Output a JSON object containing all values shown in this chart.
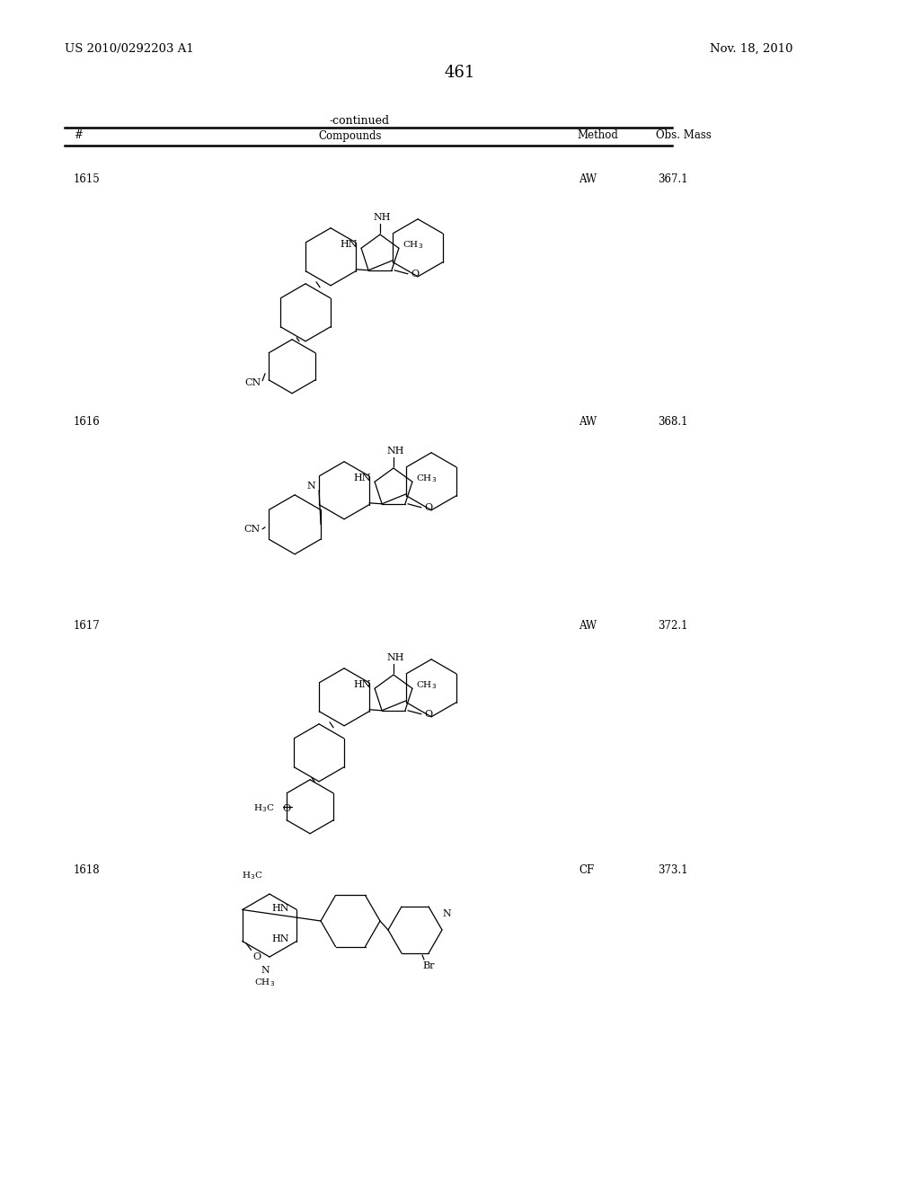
{
  "page_number": "461",
  "patent_number": "US 2010/0292203 A1",
  "patent_date": "Nov. 18, 2010",
  "continued_label": "-continued",
  "col_headers": [
    "#",
    "Compounds",
    "Method",
    "Obs. Mass"
  ],
  "rows": [
    {
      "id": "1615",
      "method": "AW",
      "mass": "367.1"
    },
    {
      "id": "1616",
      "method": "AW",
      "mass": "368.1"
    },
    {
      "id": "1617",
      "method": "AW",
      "mass": "372.1"
    },
    {
      "id": "1618",
      "method": "CF",
      "mass": "373.1"
    }
  ],
  "row_label_tops": [
    193,
    463,
    690,
    962
  ],
  "bg_color": "#ffffff",
  "text_color": "#000000"
}
